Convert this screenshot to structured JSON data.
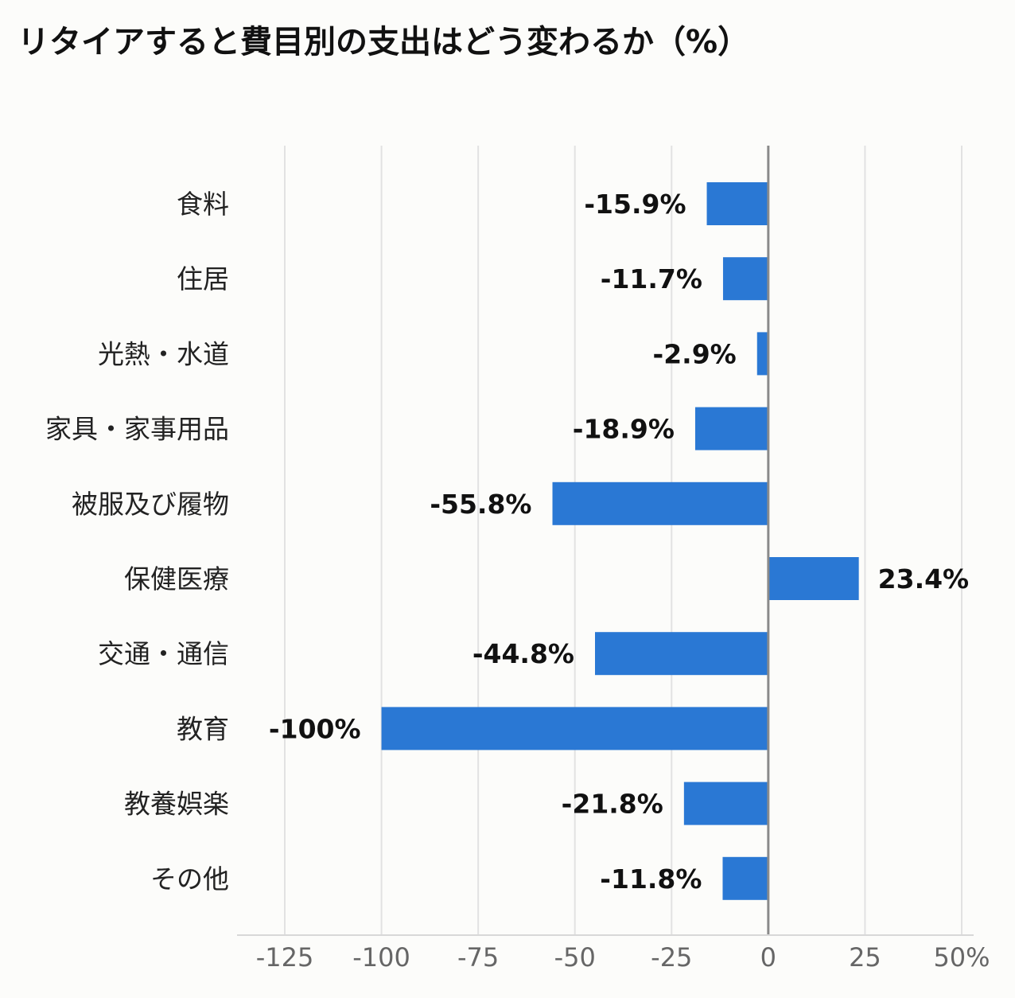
{
  "chart_data": {
    "type": "bar",
    "orientation": "horizontal",
    "title": "リタイアすると費目別の支出はどう変わるか（%）",
    "categories": [
      "食料",
      "住居",
      "光熱・水道",
      "家具・家事用品",
      "被服及び履物",
      "保健医療",
      "交通・通信",
      "教育",
      "教養娯楽",
      "その他"
    ],
    "values": [
      -15.9,
      -11.7,
      -2.9,
      -18.9,
      -55.8,
      23.4,
      -44.8,
      -100,
      -21.8,
      -11.8
    ],
    "data_labels": [
      "-15.9%",
      "-11.7%",
      "-2.9%",
      "-18.9%",
      "-55.8%",
      "23.4%",
      "-44.8%",
      "-100%",
      "-21.8%",
      "-11.8%"
    ],
    "xlim": [
      -125,
      50
    ],
    "x_ticks": [
      -125,
      -100,
      -75,
      -50,
      -25,
      0,
      25,
      50
    ],
    "x_tick_labels": [
      "-125",
      "-100",
      "-75",
      "-50",
      "-25",
      "0",
      "25",
      "50%"
    ],
    "grid": true,
    "bar_color": "#2a78d4"
  }
}
